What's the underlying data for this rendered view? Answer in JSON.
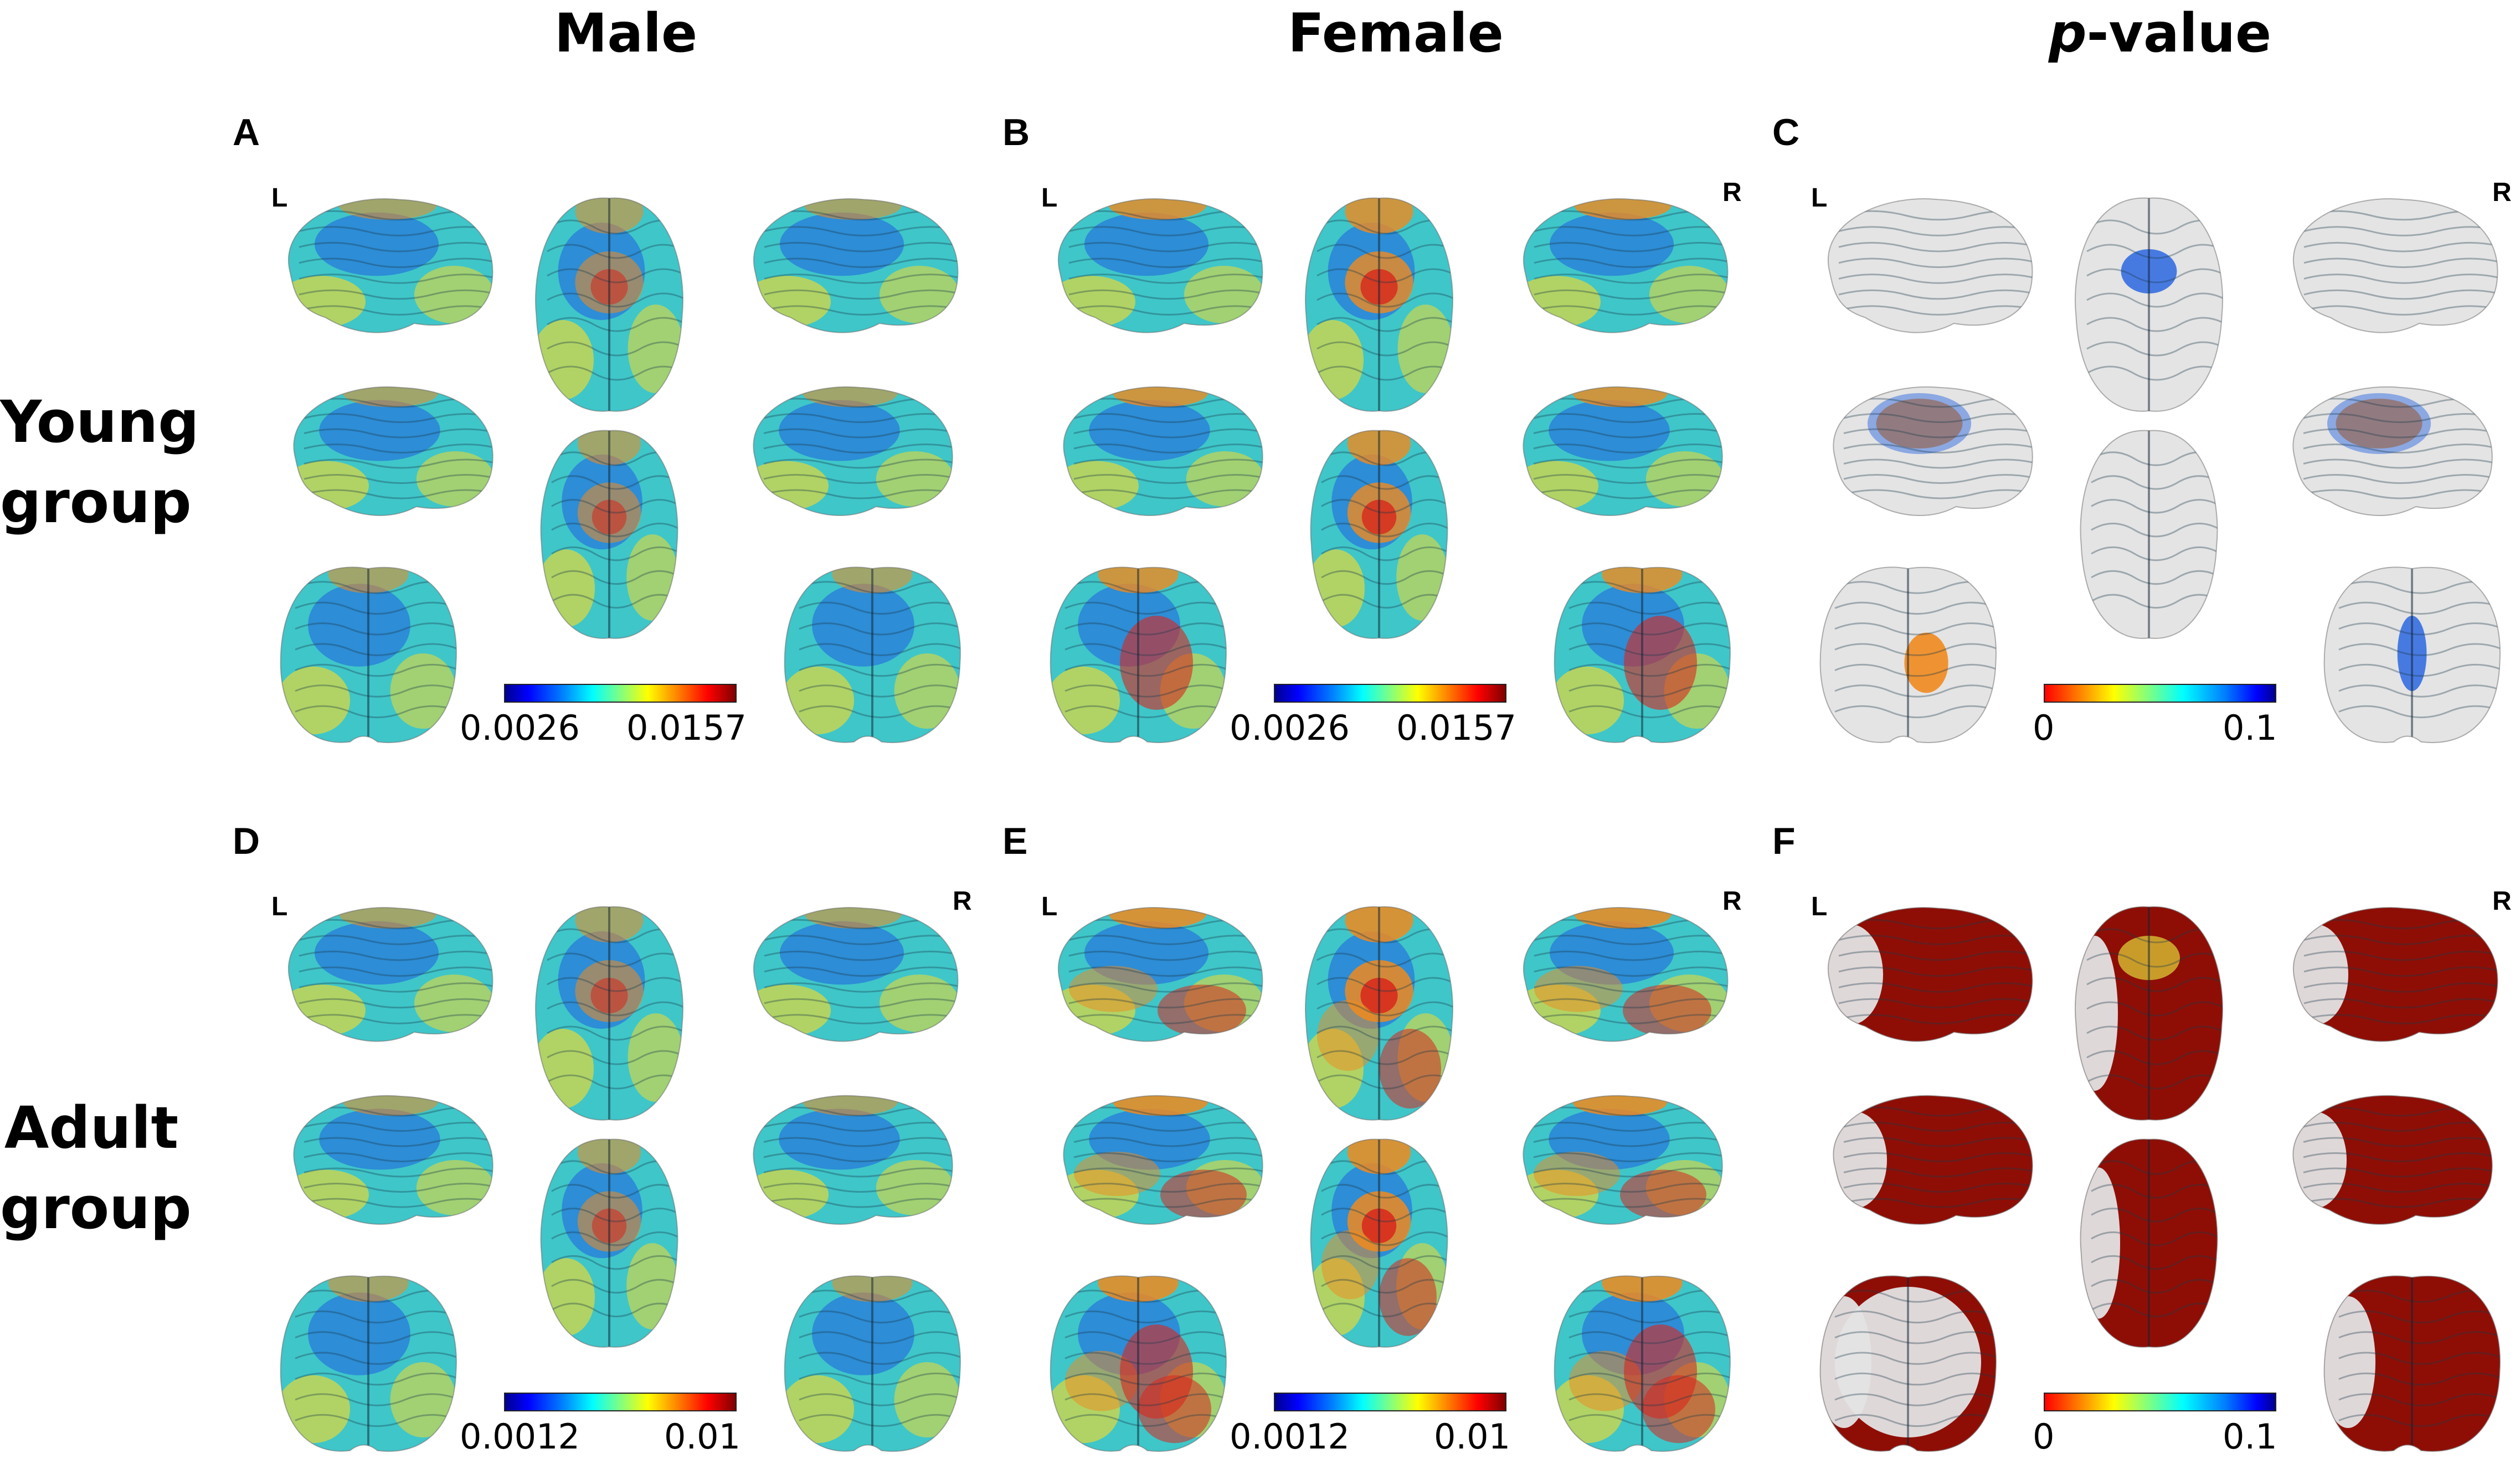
{
  "columns": {
    "male": "Male",
    "female": "Female",
    "pvalue_italic": "p",
    "pvalue_rest": "-value"
  },
  "rows": {
    "young": [
      "Young",
      "group"
    ],
    "adult": [
      "Adult",
      "group"
    ]
  },
  "panels": [
    {
      "letter": "A",
      "left": "L",
      "right": "",
      "cmin": "0.0026",
      "cmax": "0.0157",
      "palette": "jet",
      "style": "map1"
    },
    {
      "letter": "B",
      "left": "L",
      "right": "R",
      "cmin": "0.0026",
      "cmax": "0.0157",
      "palette": "jet",
      "style": "map2"
    },
    {
      "letter": "C",
      "left": "L",
      "right": "R",
      "cmin": "0",
      "cmax": "0.1",
      "palette": "p-jet",
      "style": "pgray"
    },
    {
      "letter": "D",
      "left": "L",
      "right": "R",
      "cmin": "0.0012",
      "cmax": "0.01",
      "palette": "jet",
      "style": "map1"
    },
    {
      "letter": "E",
      "left": "L",
      "right": "R",
      "cmin": "0.0012",
      "cmax": "0.01",
      "palette": "jet",
      "style": "map3"
    },
    {
      "letter": "F",
      "left": "L",
      "right": "R",
      "cmin": "0",
      "cmax": "0.1",
      "palette": "p-jet",
      "style": "pred"
    }
  ],
  "brain_views": [
    "lateral-left",
    "dorsal",
    "lateral-right",
    "medial-left",
    "ventral",
    "medial-right",
    "anterior",
    "posterior"
  ],
  "colors": {
    "cool": "#3fc6c9",
    "blue": "#1f5fe0",
    "yellow": "#e2d93a",
    "orange": "#f08a1e",
    "red": "#d8261c",
    "darkred": "#8e0e06",
    "gray": "#e4e4e4"
  }
}
